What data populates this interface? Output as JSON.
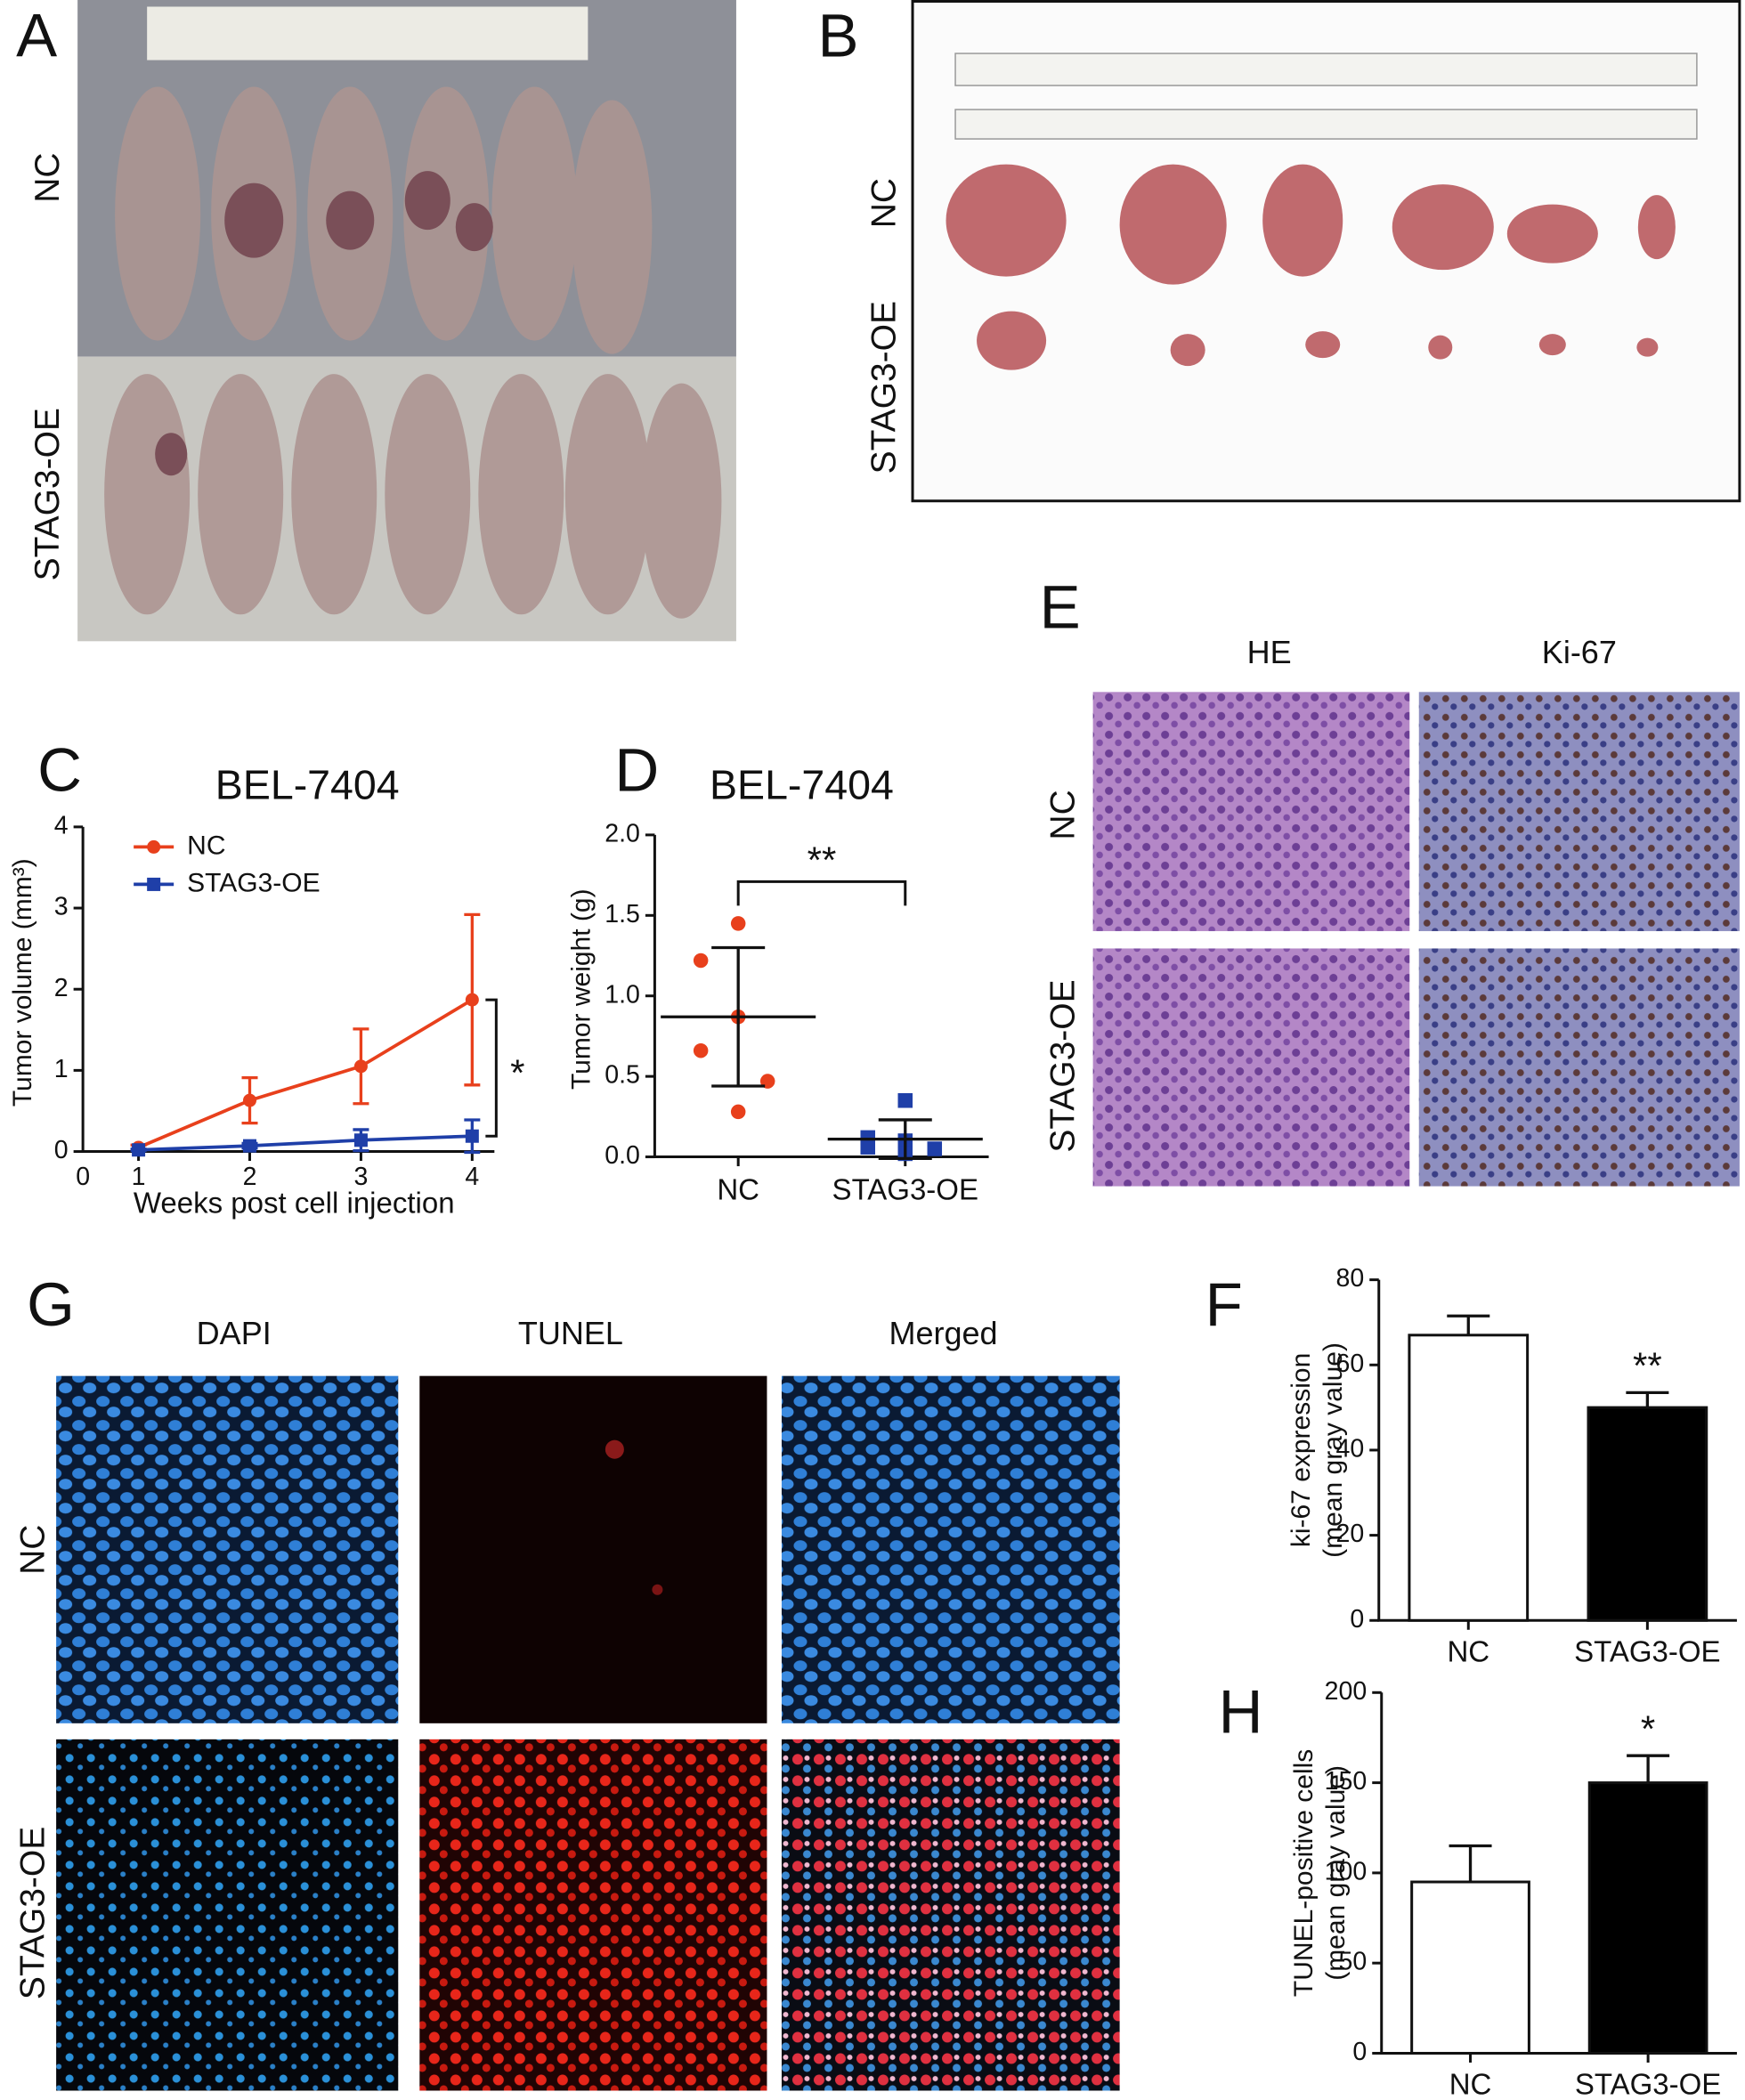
{
  "panels": {
    "A": {
      "letter": "A",
      "rows": [
        "NC",
        "STAG3-OE"
      ]
    },
    "B": {
      "letter": "B",
      "rows": [
        "NC",
        "STAG3-OE"
      ]
    },
    "E": {
      "letter": "E",
      "columns": [
        "HE",
        "Ki-67"
      ],
      "rows": [
        "NC",
        "STAG3-OE"
      ]
    },
    "G": {
      "letter": "G",
      "columns": [
        "DAPI",
        "TUNEL",
        "Merged"
      ],
      "rows": [
        "NC",
        "STAG3-OE"
      ]
    }
  },
  "chart_data": [
    {
      "type": "line",
      "letter": "C",
      "title": "BEL-7404",
      "x_label": "Weeks post cell injection",
      "y_label": "Tumor volume (mm³)",
      "x": [
        1,
        2,
        3,
        4
      ],
      "xlim": [
        0.5,
        4.2
      ],
      "xticks": [
        1,
        2,
        3,
        4
      ],
      "x_origin_label": "0",
      "ylim": [
        0,
        4
      ],
      "yticks": [
        0,
        1,
        2,
        3,
        4
      ],
      "series": [
        {
          "name": "NC",
          "color": "#e8401c",
          "marker": "circle",
          "values": [
            0.05,
            0.63,
            1.05,
            1.87
          ],
          "errors": [
            0.03,
            0.28,
            0.46,
            1.05
          ]
        },
        {
          "name": "STAG3-OE",
          "color": "#1f3fa8",
          "marker": "square",
          "values": [
            0.02,
            0.07,
            0.14,
            0.19
          ],
          "errors": [
            0.01,
            0.03,
            0.13,
            0.2
          ]
        }
      ],
      "legend": "upper left",
      "annotation": "*"
    },
    {
      "type": "dot",
      "letter": "D",
      "title": "BEL-7404",
      "y_label": "Tumor weight (g)",
      "categories": [
        "NC",
        "STAG3-OE"
      ],
      "points": [
        [
          1.45,
          1.22,
          0.87,
          0.66,
          0.47,
          0.28
        ],
        [
          0.35,
          0.12,
          0.1,
          0.06,
          0.05,
          0.02
        ]
      ],
      "means": [
        0.87,
        0.11
      ],
      "sd": [
        0.43,
        0.12
      ],
      "colors": [
        "#e8401c",
        "#1f3fa8"
      ],
      "markers": [
        "circle",
        "square"
      ],
      "ylim": [
        0,
        2.0
      ],
      "yticks": [
        {
          "value": 0,
          "label": "0.0"
        },
        {
          "value": 0.5,
          "label": "0.5"
        },
        {
          "value": 1,
          "label": "1.0"
        },
        {
          "value": 1.5,
          "label": "1.5"
        },
        {
          "value": 2,
          "label": "2.0"
        }
      ],
      "annotation": "**"
    },
    {
      "type": "bar",
      "letter": "F",
      "y_label": [
        "ki-67 expression",
        "(mean gray value)"
      ],
      "categories": [
        "NC",
        "STAG3-OE"
      ],
      "values": [
        67,
        50
      ],
      "errors": [
        4.5,
        3.5
      ],
      "colors": [
        "#ffffff",
        "#000000"
      ],
      "ylim": [
        0,
        80
      ],
      "yticks": [
        0,
        20,
        40,
        60,
        80
      ],
      "annotation": "**"
    },
    {
      "type": "bar",
      "letter": "H",
      "y_label": [
        "TUNEL-positive cells",
        "(mean gray value)"
      ],
      "categories": [
        "NC",
        "STAG3-OE"
      ],
      "values": [
        95,
        150
      ],
      "errors": [
        20,
        15
      ],
      "colors": [
        "#ffffff",
        "#000000"
      ],
      "ylim": [
        0,
        200
      ],
      "yticks": [
        0,
        50,
        100,
        150,
        200
      ],
      "annotation": "*"
    }
  ]
}
